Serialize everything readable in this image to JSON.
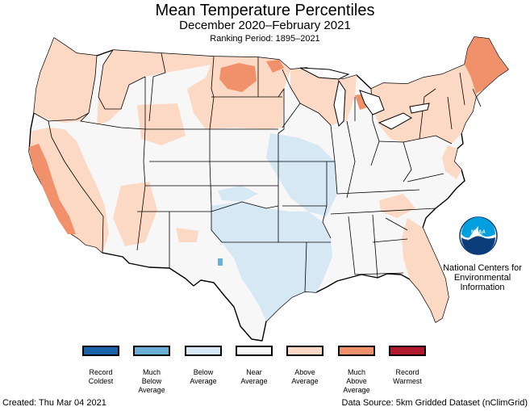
{
  "header": {
    "title": "Mean Temperature Percentiles",
    "subtitle": "December 2020–February 2021",
    "ranking_period": "Ranking Period: 1895–2021"
  },
  "logo": {
    "text": "NOAA",
    "org_name": "National Centers for\nEnvironmental\nInformation"
  },
  "legend": {
    "items": [
      {
        "label": "Record\nColdest",
        "color": "#1a63a8"
      },
      {
        "label": "Much\nBelow\nAverage",
        "color": "#6baed6"
      },
      {
        "label": "Below\nAverage",
        "color": "#d6e8f4"
      },
      {
        "label": "Near\nAverage",
        "color": "#f7f7f7"
      },
      {
        "label": "Above\nAverage",
        "color": "#fcd9c4"
      },
      {
        "label": "Much\nAbove\nAverage",
        "color": "#f0916b"
      },
      {
        "label": "Record\nWarmest",
        "color": "#b01a2c"
      }
    ]
  },
  "footer": {
    "created": "Created: Thu Mar 04 2021",
    "source": "Data Source: 5km Gridded Dataset (nClimGrid)"
  },
  "colors": {
    "near": "#f7f7f7",
    "above": "#fcd9c4",
    "much_above": "#f0916b",
    "below": "#d6e8f4",
    "much_below": "#6baed6",
    "water": "#ffffff",
    "border": "#000000"
  }
}
